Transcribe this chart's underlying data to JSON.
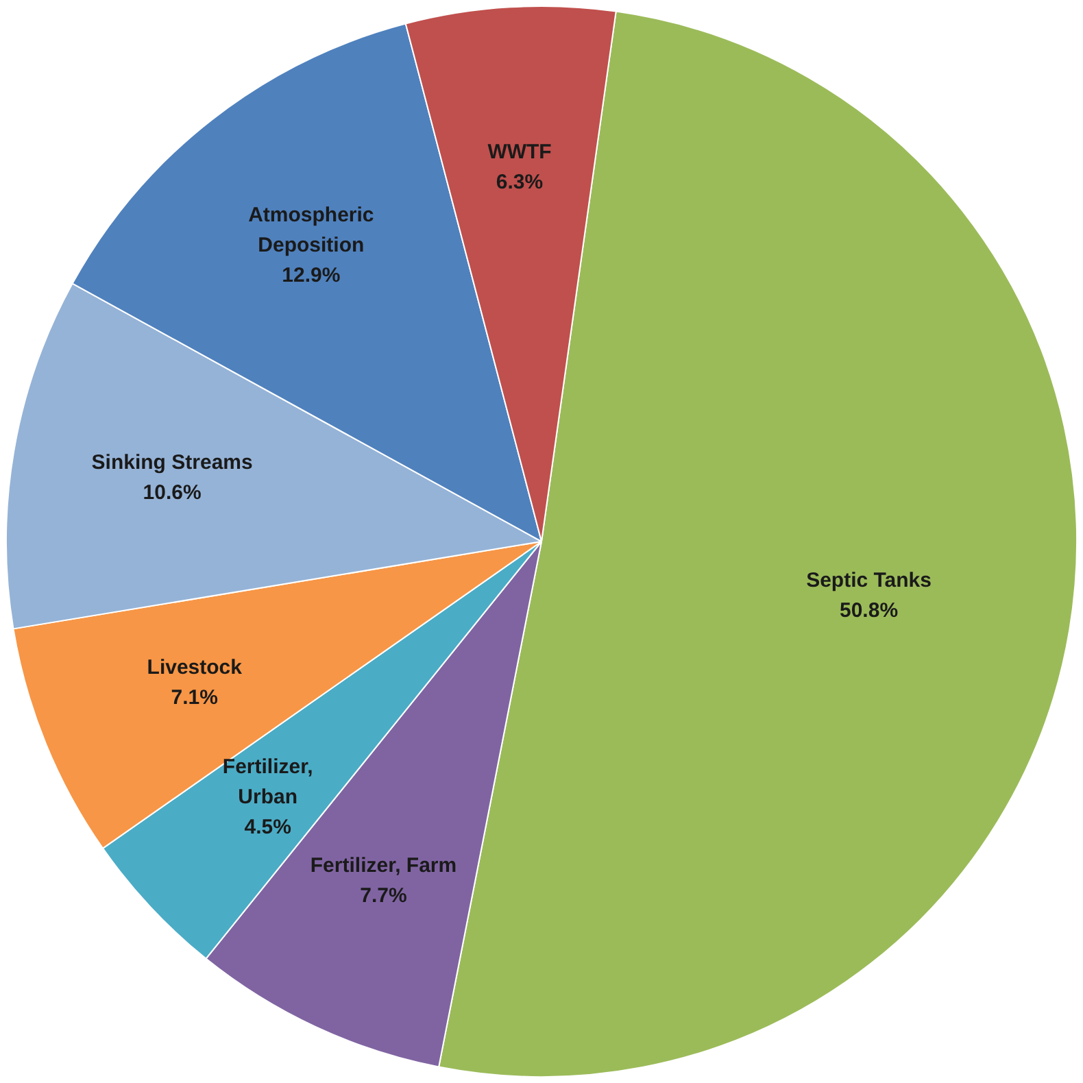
{
  "chart_data": {
    "type": "pie",
    "categories": [
      "Septic Tanks",
      "Fertilizer, Farm",
      "Fertilizer, Urban",
      "Livestock",
      "Sinking Streams",
      "Atmospheric Deposition",
      "WWTF"
    ],
    "values": [
      50.8,
      7.7,
      4.5,
      7.1,
      10.6,
      12.9,
      6.3
    ],
    "colors": [
      "#9bbb59",
      "#8064a2",
      "#4bacc6",
      "#f79646",
      "#95b3d7",
      "#4f81bd",
      "#c0504d"
    ],
    "value_labels": [
      "50.8%",
      "7.7%",
      "4.5%",
      "7.1%",
      "10.6%",
      "12.9%",
      "6.3%"
    ],
    "legend": false
  }
}
